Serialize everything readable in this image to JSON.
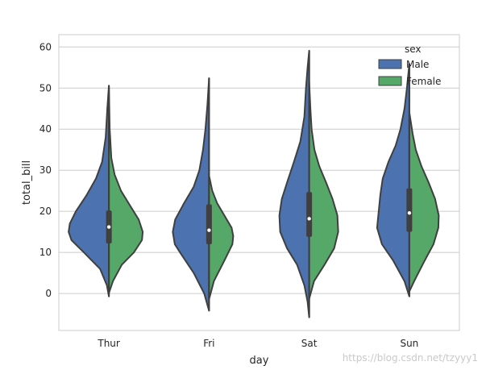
{
  "chart_data": {
    "type": "violin",
    "xlabel": "day",
    "ylabel": "total_bill",
    "categories": [
      "Thur",
      "Fri",
      "Sat",
      "Sun"
    ],
    "yticks": [
      0,
      10,
      20,
      30,
      40,
      50,
      60
    ],
    "ylim": [
      -9,
      63
    ],
    "grid": true,
    "legend": {
      "title": "sex",
      "placement": "top-right"
    },
    "series": [
      {
        "name": "Male",
        "color": "#4c72b0",
        "side": "left",
        "violins": [
          {
            "day": "Thur",
            "lo": -0.7,
            "hi": 50.6,
            "profile": [
              [
                -0.7,
                0
              ],
              [
                2,
                0.05
              ],
              [
                6,
                0.22
              ],
              [
                10,
                0.62
              ],
              [
                13,
                0.93
              ],
              [
                15,
                1.0
              ],
              [
                17,
                0.97
              ],
              [
                20,
                0.82
              ],
              [
                24,
                0.55
              ],
              [
                28,
                0.32
              ],
              [
                32,
                0.17
              ],
              [
                38,
                0.08
              ],
              [
                45,
                0.04
              ],
              [
                50.6,
                0
              ]
            ]
          },
          {
            "day": "Fri",
            "lo": -4.2,
            "hi": 52.4,
            "profile": [
              [
                -4.2,
                0
              ],
              [
                0,
                0.12
              ],
              [
                5,
                0.38
              ],
              [
                10,
                0.72
              ],
              [
                12,
                0.85
              ],
              [
                15,
                0.9
              ],
              [
                18,
                0.84
              ],
              [
                22,
                0.62
              ],
              [
                26,
                0.38
              ],
              [
                30,
                0.24
              ],
              [
                35,
                0.15
              ],
              [
                40,
                0.09
              ],
              [
                46,
                0.04
              ],
              [
                52.4,
                0
              ]
            ]
          },
          {
            "day": "Sat",
            "lo": -5.8,
            "hi": 59.1,
            "profile": [
              [
                -5.8,
                0
              ],
              [
                -2,
                0.04
              ],
              [
                2,
                0.12
              ],
              [
                7,
                0.3
              ],
              [
                11,
                0.55
              ],
              [
                15,
                0.72
              ],
              [
                19,
                0.74
              ],
              [
                23,
                0.68
              ],
              [
                27,
                0.55
              ],
              [
                32,
                0.38
              ],
              [
                37,
                0.22
              ],
              [
                43,
                0.12
              ],
              [
                50,
                0.08
              ],
              [
                55,
                0.04
              ],
              [
                59.1,
                0
              ]
            ]
          },
          {
            "day": "Sun",
            "lo": -0.7,
            "hi": 55.9,
            "profile": [
              [
                -0.7,
                0
              ],
              [
                3,
                0.12
              ],
              [
                8,
                0.4
              ],
              [
                12,
                0.68
              ],
              [
                16,
                0.8
              ],
              [
                20,
                0.76
              ],
              [
                24,
                0.72
              ],
              [
                28,
                0.66
              ],
              [
                32,
                0.52
              ],
              [
                36,
                0.34
              ],
              [
                40,
                0.22
              ],
              [
                45,
                0.12
              ],
              [
                50,
                0.06
              ],
              [
                55.9,
                0
              ]
            ]
          }
        ]
      },
      {
        "name": "Female",
        "color": "#55a868",
        "side": "right",
        "violins": [
          {
            "day": "Thur",
            "lo": 0.1,
            "hi": 50.1,
            "profile": [
              [
                0.1,
                0
              ],
              [
                3,
                0.1
              ],
              [
                7,
                0.32
              ],
              [
                10,
                0.62
              ],
              [
                13,
                0.82
              ],
              [
                15,
                0.84
              ],
              [
                18,
                0.74
              ],
              [
                21,
                0.55
              ],
              [
                25,
                0.3
              ],
              [
                29,
                0.14
              ],
              [
                33,
                0.06
              ],
              [
                40,
                0.02
              ],
              [
                45,
                0.01
              ],
              [
                50.1,
                0
              ]
            ]
          },
          {
            "day": "Fri",
            "lo": -1.4,
            "hi": 28.7,
            "profile": [
              [
                -1.4,
                0
              ],
              [
                3,
                0.12
              ],
              [
                8,
                0.38
              ],
              [
                12,
                0.58
              ],
              [
                14,
                0.6
              ],
              [
                16,
                0.56
              ],
              [
                19,
                0.38
              ],
              [
                22,
                0.2
              ],
              [
                25,
                0.08
              ],
              [
                28.7,
                0
              ]
            ]
          },
          {
            "day": "Sat",
            "lo": -1.3,
            "hi": 51.4,
            "profile": [
              [
                -1.3,
                0
              ],
              [
                3,
                0.12
              ],
              [
                7,
                0.38
              ],
              [
                11,
                0.62
              ],
              [
                15,
                0.72
              ],
              [
                19,
                0.7
              ],
              [
                23,
                0.58
              ],
              [
                27,
                0.42
              ],
              [
                31,
                0.25
              ],
              [
                35,
                0.13
              ],
              [
                40,
                0.06
              ],
              [
                45,
                0.03
              ],
              [
                51.4,
                0
              ]
            ]
          },
          {
            "day": "Sun",
            "lo": 0.5,
            "hi": 44.1,
            "profile": [
              [
                0.5,
                0
              ],
              [
                3,
                0.12
              ],
              [
                8,
                0.38
              ],
              [
                12,
                0.6
              ],
              [
                16,
                0.72
              ],
              [
                19,
                0.73
              ],
              [
                23,
                0.64
              ],
              [
                27,
                0.48
              ],
              [
                31,
                0.3
              ],
              [
                35,
                0.16
              ],
              [
                39,
                0.08
              ],
              [
                44.1,
                0
              ]
            ]
          }
        ]
      }
    ],
    "box": [
      {
        "day": "Thur",
        "q1": 12.2,
        "median": 16.2,
        "q3": 20.2
      },
      {
        "day": "Fri",
        "q1": 12.0,
        "median": 15.4,
        "q3": 21.7
      },
      {
        "day": "Sat",
        "q1": 13.8,
        "median": 18.2,
        "q3": 24.7
      },
      {
        "day": "Sun",
        "q1": 15.0,
        "median": 19.6,
        "q3": 25.6
      }
    ]
  },
  "watermark": "https://blog.csdn.net/tzyyy1"
}
